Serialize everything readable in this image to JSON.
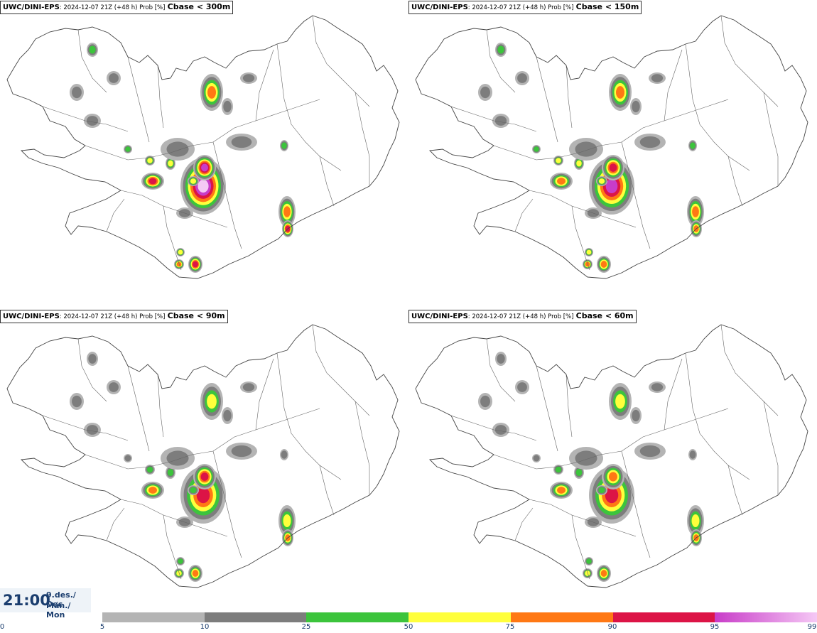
{
  "panels": [
    {
      "model": "UWC/DINI-EPS",
      "meta": ": 2024-12-07 21Z (+48 h) Prob [%]",
      "threshold": "Cbase < 300m"
    },
    {
      "model": "UWC/DINI-EPS",
      "meta": ": 2024-12-07 21Z (+48 h) Prob [%]",
      "threshold": "Cbase < 150m"
    },
    {
      "model": "UWC/DINI-EPS",
      "meta": ": 2024-12-07 21Z (+48 h) Prob [%]",
      "threshold": "Cbase < 90m"
    },
    {
      "model": "UWC/DINI-EPS",
      "meta": ": 2024-12-07 21Z (+48 h) Prob [%]",
      "threshold": "Cbase < 60m"
    }
  ],
  "valid_time": {
    "time": "21:00",
    "date_line1": "9.des./ Dec",
    "date_line2": "Mán./ Mon"
  },
  "legend": {
    "ticks": [
      "0",
      "5",
      "10",
      "25",
      "50",
      "75",
      "90",
      "95",
      "99"
    ],
    "colors": [
      "#b4b4b4",
      "#7d7d7d",
      "#3cc43c",
      "#ffff3c",
      "#ff7814",
      "#dc1446",
      "#c83cc8",
      "#f5c8f5"
    ]
  }
}
